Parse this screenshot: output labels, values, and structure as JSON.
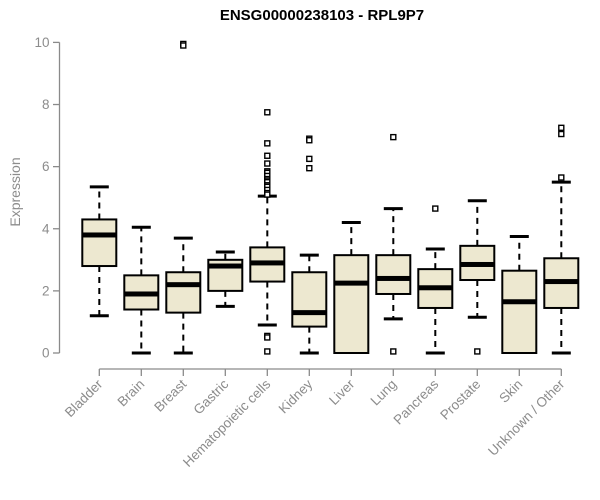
{
  "title": "ENSG00000238103 - RPL9P7",
  "chart_data": {
    "type": "boxplot",
    "title": "ENSG00000238103 - RPL9P7",
    "xlabel": "",
    "ylabel": "Expression",
    "ylim": [
      0,
      10
    ],
    "yticks": [
      0,
      2,
      4,
      6,
      8,
      10
    ],
    "grid": false,
    "legend": "none",
    "colors": {
      "box_fill": "#EDE8D0",
      "box_stroke": "#000000",
      "median": "#000000",
      "whisker": "#000000",
      "outlier_stroke": "#000000",
      "axis": "#8a8a8a",
      "tick_label": "#8c8c8c",
      "title": "#000000"
    },
    "categories": [
      "Bladder",
      "Brain",
      "Breast",
      "Gastric",
      "Hematopoietic cells",
      "Kidney",
      "Liver",
      "Lung",
      "Pancreas",
      "Prostate",
      "Skin",
      "Unknown / Other"
    ],
    "boxes": [
      {
        "category": "Bladder",
        "low": 1.2,
        "q1": 2.8,
        "median": 3.8,
        "q3": 4.3,
        "high": 5.35,
        "outliers": []
      },
      {
        "category": "Brain",
        "low": 0.0,
        "q1": 1.4,
        "median": 1.9,
        "q3": 2.5,
        "high": 4.05,
        "outliers": []
      },
      {
        "category": "Breast",
        "low": 0.0,
        "q1": 1.3,
        "median": 2.2,
        "q3": 2.6,
        "high": 3.7,
        "outliers": [
          9.95,
          9.9
        ]
      },
      {
        "category": "Gastric",
        "low": 1.5,
        "q1": 2.0,
        "median": 2.8,
        "q3": 3.0,
        "high": 3.25,
        "outliers": []
      },
      {
        "category": "Hematopoietic cells",
        "low": 0.9,
        "q1": 2.3,
        "median": 2.9,
        "q3": 3.4,
        "high": 5.05,
        "outliers": [
          7.75,
          6.75,
          6.35,
          6.1,
          5.85,
          5.8,
          5.7,
          5.6,
          5.55,
          5.5,
          5.4,
          5.35,
          5.25,
          5.15,
          5.1,
          0.55,
          0.5,
          0.05
        ]
      },
      {
        "category": "Kidney",
        "low": 0.0,
        "q1": 0.85,
        "median": 1.3,
        "q3": 2.6,
        "high": 3.15,
        "outliers": [
          6.9,
          6.85,
          6.25,
          5.95
        ]
      },
      {
        "category": "Liver",
        "low": 0.0,
        "q1": 0.0,
        "median": 2.25,
        "q3": 3.15,
        "high": 4.2,
        "outliers": []
      },
      {
        "category": "Lung",
        "low": 1.1,
        "q1": 1.9,
        "median": 2.4,
        "q3": 3.15,
        "high": 4.65,
        "outliers": [
          6.95,
          0.05
        ]
      },
      {
        "category": "Pancreas",
        "low": 0.0,
        "q1": 1.45,
        "median": 2.1,
        "q3": 2.7,
        "high": 3.35,
        "outliers": [
          4.65
        ]
      },
      {
        "category": "Prostate",
        "low": 1.15,
        "q1": 2.35,
        "median": 2.85,
        "q3": 3.45,
        "high": 4.9,
        "outliers": [
          0.05
        ]
      },
      {
        "category": "Skin",
        "low": 0.0,
        "q1": 0.0,
        "median": 1.65,
        "q3": 2.65,
        "high": 3.75,
        "outliers": []
      },
      {
        "category": "Unknown / Other",
        "low": 0.0,
        "q1": 1.45,
        "median": 2.3,
        "q3": 3.05,
        "high": 5.5,
        "outliers": [
          7.25,
          7.05,
          5.65
        ]
      }
    ]
  }
}
